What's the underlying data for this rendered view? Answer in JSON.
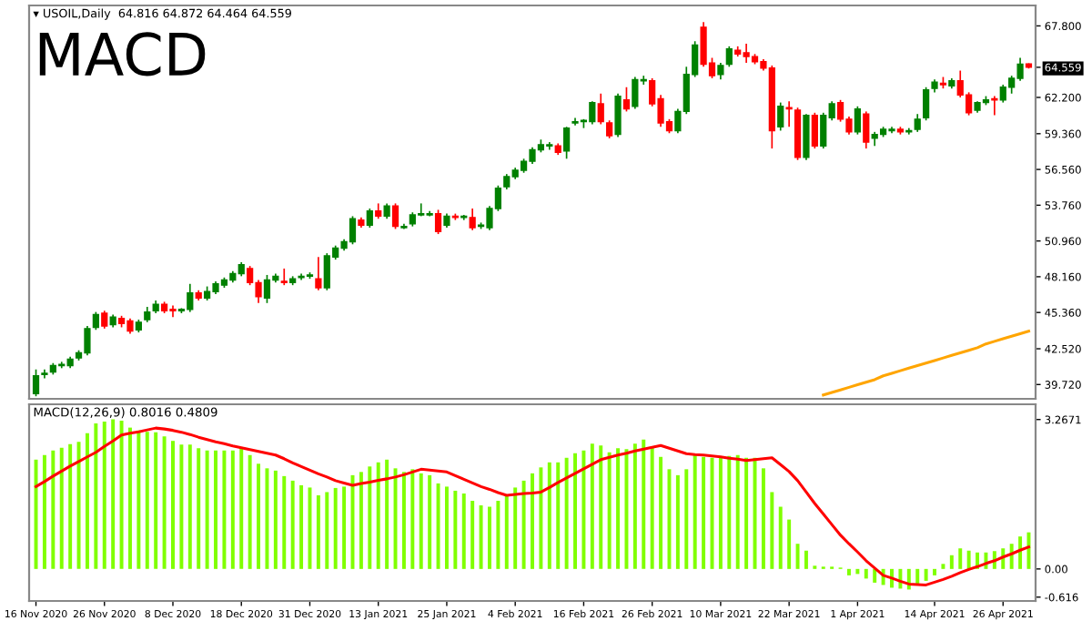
{
  "chart_data": [
    {
      "type": "candlestick",
      "title": "MACD",
      "subtitle": "▾ USOIL,Daily  64.816 64.872 64.464 64.559",
      "tick_labels": "y",
      "ohlc": [
        [
          39.0,
          40.9,
          38.8,
          40.4
        ],
        [
          40.5,
          40.9,
          40.2,
          40.6
        ],
        [
          40.7,
          41.4,
          40.5,
          41.2
        ],
        [
          41.2,
          41.5,
          41.0,
          41.3
        ],
        [
          41.2,
          41.9,
          41.0,
          41.7
        ],
        [
          41.8,
          42.4,
          41.6,
          42.2
        ],
        [
          42.2,
          44.3,
          42.0,
          44.1
        ],
        [
          44.2,
          45.4,
          44.0,
          45.2
        ],
        [
          45.3,
          45.5,
          44.1,
          44.3
        ],
        [
          44.4,
          45.2,
          44.2,
          45.0
        ],
        [
          44.9,
          45.1,
          44.2,
          44.5
        ],
        [
          44.7,
          44.9,
          43.7,
          43.9
        ],
        [
          44.0,
          44.8,
          43.8,
          44.6
        ],
        [
          44.8,
          45.8,
          44.6,
          45.4
        ],
        [
          45.5,
          46.3,
          45.3,
          46.0
        ],
        [
          46.0,
          46.2,
          45.3,
          45.5
        ],
        [
          45.6,
          45.9,
          45.0,
          45.5
        ],
        [
          45.5,
          45.7,
          45.3,
          45.6
        ],
        [
          45.6,
          47.6,
          45.4,
          46.9
        ],
        [
          46.9,
          47.1,
          46.3,
          46.5
        ],
        [
          46.5,
          47.4,
          46.3,
          47.0
        ],
        [
          47.0,
          47.8,
          46.8,
          47.6
        ],
        [
          47.5,
          48.1,
          47.3,
          47.9
        ],
        [
          47.9,
          48.6,
          47.7,
          48.4
        ],
        [
          48.4,
          49.3,
          48.2,
          49.1
        ],
        [
          48.8,
          49.0,
          47.5,
          47.7
        ],
        [
          47.7,
          47.9,
          46.1,
          46.6
        ],
        [
          46.5,
          48.3,
          46.1,
          47.9
        ],
        [
          47.9,
          48.4,
          47.7,
          48.2
        ],
        [
          47.8,
          48.8,
          47.5,
          47.7
        ],
        [
          47.7,
          48.2,
          47.5,
          48.0
        ],
        [
          48.1,
          48.4,
          47.9,
          48.2
        ],
        [
          48.2,
          48.5,
          48.0,
          48.3
        ],
        [
          48.0,
          49.7,
          47.1,
          47.3
        ],
        [
          47.3,
          50.0,
          47.1,
          49.8
        ],
        [
          49.7,
          50.6,
          49.5,
          50.4
        ],
        [
          50.4,
          51.1,
          50.2,
          50.9
        ],
        [
          50.9,
          52.9,
          50.7,
          52.7
        ],
        [
          52.6,
          52.8,
          52.0,
          52.2
        ],
        [
          52.2,
          53.5,
          52.0,
          53.3
        ],
        [
          53.3,
          53.9,
          52.7,
          52.9
        ],
        [
          52.9,
          53.9,
          52.7,
          53.7
        ],
        [
          53.7,
          53.9,
          51.9,
          52.1
        ],
        [
          52.0,
          52.3,
          51.9,
          52.1
        ],
        [
          52.3,
          53.2,
          52.1,
          53.0
        ],
        [
          53.0,
          53.9,
          52.9,
          53.1
        ],
        [
          53.0,
          53.3,
          52.9,
          53.1
        ],
        [
          53.1,
          53.4,
          51.5,
          51.7
        ],
        [
          52.2,
          53.1,
          52.0,
          52.9
        ],
        [
          52.9,
          53.1,
          52.6,
          52.8
        ],
        [
          52.8,
          53.0,
          52.6,
          52.9
        ],
        [
          52.8,
          53.5,
          51.8,
          52.0
        ],
        [
          52.1,
          52.4,
          51.9,
          52.2
        ],
        [
          52.0,
          53.7,
          51.8,
          53.5
        ],
        [
          53.5,
          55.3,
          53.3,
          55.1
        ],
        [
          55.2,
          56.2,
          55.0,
          56.0
        ],
        [
          56.0,
          56.7,
          55.8,
          56.5
        ],
        [
          56.5,
          57.4,
          56.3,
          57.2
        ],
        [
          57.2,
          58.3,
          57.0,
          58.1
        ],
        [
          58.1,
          58.9,
          57.9,
          58.5
        ],
        [
          58.4,
          58.7,
          58.1,
          58.5
        ],
        [
          58.4,
          58.6,
          57.7,
          57.9
        ],
        [
          58.0,
          59.9,
          57.4,
          59.8
        ],
        [
          60.2,
          60.6,
          60.0,
          60.3
        ],
        [
          60.3,
          60.5,
          59.8,
          60.4
        ],
        [
          60.3,
          61.9,
          60.1,
          61.8
        ],
        [
          61.7,
          62.5,
          60.1,
          60.3
        ],
        [
          60.2,
          60.4,
          59.0,
          59.2
        ],
        [
          59.3,
          62.5,
          59.1,
          62.3
        ],
        [
          62.0,
          63.0,
          61.1,
          61.3
        ],
        [
          61.5,
          63.8,
          61.3,
          63.6
        ],
        [
          63.5,
          63.9,
          63.2,
          63.6
        ],
        [
          63.5,
          63.7,
          61.5,
          61.7
        ],
        [
          62.1,
          62.4,
          59.9,
          60.2
        ],
        [
          60.3,
          60.5,
          59.4,
          59.6
        ],
        [
          59.6,
          61.3,
          59.4,
          61.1
        ],
        [
          61.1,
          64.6,
          60.9,
          64.0
        ],
        [
          64.0,
          66.6,
          63.8,
          66.3
        ],
        [
          67.7,
          68.1,
          64.6,
          64.8
        ],
        [
          64.9,
          65.3,
          63.7,
          63.9
        ],
        [
          64.0,
          64.9,
          63.6,
          64.7
        ],
        [
          64.8,
          66.2,
          64.6,
          66.0
        ],
        [
          65.9,
          66.2,
          65.4,
          65.6
        ],
        [
          65.7,
          66.4,
          64.9,
          65.4
        ],
        [
          65.4,
          65.6,
          64.8,
          65.0
        ],
        [
          65.0,
          65.2,
          64.3,
          64.5
        ],
        [
          64.5,
          64.7,
          58.2,
          59.6
        ],
        [
          59.9,
          61.8,
          59.6,
          61.5
        ],
        [
          61.4,
          61.9,
          59.9,
          61.3
        ],
        [
          61.2,
          61.4,
          57.3,
          57.5
        ],
        [
          57.5,
          60.9,
          57.3,
          60.8
        ],
        [
          60.8,
          61.0,
          58.2,
          58.4
        ],
        [
          58.4,
          61.0,
          58.2,
          60.8
        ],
        [
          60.6,
          61.9,
          60.4,
          61.7
        ],
        [
          61.8,
          62.0,
          60.3,
          60.5
        ],
        [
          60.5,
          60.7,
          59.3,
          59.5
        ],
        [
          59.5,
          61.5,
          59.3,
          61.3
        ],
        [
          60.9,
          61.1,
          58.2,
          58.7
        ],
        [
          59.0,
          59.5,
          58.4,
          59.3
        ],
        [
          59.3,
          59.9,
          59.1,
          59.7
        ],
        [
          59.6,
          59.9,
          59.4,
          59.7
        ],
        [
          59.7,
          59.9,
          59.3,
          59.5
        ],
        [
          59.5,
          59.8,
          59.3,
          59.6
        ],
        [
          59.7,
          60.9,
          59.5,
          60.5
        ],
        [
          60.6,
          63.0,
          60.4,
          62.8
        ],
        [
          62.9,
          63.6,
          62.6,
          63.4
        ],
        [
          63.3,
          63.8,
          62.9,
          63.2
        ],
        [
          63.1,
          63.7,
          62.9,
          63.5
        ],
        [
          63.5,
          64.3,
          62.2,
          62.4
        ],
        [
          62.4,
          62.6,
          60.8,
          61.0
        ],
        [
          61.2,
          61.9,
          61.0,
          61.8
        ],
        [
          61.8,
          62.3,
          61.6,
          62.0
        ],
        [
          62.1,
          62.3,
          60.8,
          62.0
        ],
        [
          62.0,
          63.2,
          61.8,
          63.0
        ],
        [
          63.0,
          63.9,
          62.5,
          63.7
        ],
        [
          63.7,
          65.3,
          63.5,
          64.8
        ],
        [
          64.816,
          64.872,
          64.464,
          64.559
        ]
      ],
      "colors": [
        "#008000",
        "#008000",
        "#008000",
        "#008000",
        "#008000",
        "#008000",
        "#008000",
        "#008000",
        "#ff0000",
        "#008000",
        "#ff0000",
        "#ff0000",
        "#008000",
        "#008000",
        "#008000",
        "#ff0000",
        "#ff0000",
        "#008000",
        "#008000",
        "#ff0000",
        "#008000",
        "#008000",
        "#008000",
        "#008000",
        "#008000",
        "#ff0000",
        "#ff0000",
        "#008000",
        "#008000",
        "#ff0000",
        "#008000",
        "#008000",
        "#008000",
        "#ff0000",
        "#008000",
        "#008000",
        "#008000",
        "#008000",
        "#ff0000",
        "#008000",
        "#ff0000",
        "#008000",
        "#ff0000",
        "#008000",
        "#008000",
        "#008000",
        "#008000",
        "#ff0000",
        "#008000",
        "#ff0000",
        "#008000",
        "#ff0000",
        "#008000",
        "#008000",
        "#008000",
        "#008000",
        "#008000",
        "#008000",
        "#008000",
        "#008000",
        "#008000",
        "#ff0000",
        "#008000",
        "#008000",
        "#008000",
        "#008000",
        "#ff0000",
        "#ff0000",
        "#008000",
        "#ff0000",
        "#008000",
        "#008000",
        "#ff0000",
        "#ff0000",
        "#ff0000",
        "#008000",
        "#008000",
        "#008000",
        "#ff0000",
        "#ff0000",
        "#008000",
        "#008000",
        "#ff0000",
        "#ff0000",
        "#ff0000",
        "#ff0000",
        "#ff0000",
        "#008000",
        "#ff0000",
        "#ff0000",
        "#008000",
        "#ff0000",
        "#008000",
        "#008000",
        "#ff0000",
        "#ff0000",
        "#008000",
        "#ff0000",
        "#008000",
        "#008000",
        "#008000",
        "#ff0000",
        "#008000",
        "#008000",
        "#008000",
        "#008000",
        "#ff0000",
        "#008000",
        "#ff0000",
        "#ff0000",
        "#008000",
        "#008000",
        "#ff0000",
        "#008000",
        "#008000",
        "#008000",
        "#ff0000"
      ],
      "series": [
        {
          "type": "line",
          "color": "#ffa500",
          "values": [
            null,
            null,
            null,
            null,
            null,
            null,
            null,
            null,
            null,
            null,
            null,
            null,
            null,
            null,
            null,
            null,
            null,
            null,
            null,
            null,
            null,
            null,
            null,
            null,
            null,
            null,
            null,
            null,
            null,
            null,
            null,
            null,
            null,
            null,
            null,
            null,
            null,
            null,
            null,
            null,
            null,
            null,
            null,
            null,
            null,
            null,
            null,
            null,
            null,
            null,
            null,
            null,
            null,
            null,
            null,
            null,
            null,
            null,
            null,
            null,
            null,
            null,
            null,
            null,
            null,
            null,
            null,
            null,
            null,
            null,
            null,
            null,
            null,
            null,
            null,
            null,
            null,
            null,
            null,
            null,
            null,
            null,
            null,
            null,
            null,
            null,
            null,
            null,
            null,
            null,
            null,
            null,
            38.9,
            39.1,
            39.3,
            39.5,
            39.7,
            39.9,
            40.1,
            40.4,
            40.6,
            40.8,
            41.0,
            41.2,
            41.4,
            41.6,
            41.8,
            42.0,
            42.2,
            42.4,
            42.6,
            42.9,
            43.1,
            43.3,
            43.5,
            43.7,
            43.9
          ]
        }
      ],
      "ylim": [
        38.6,
        69.4
      ],
      "yticks": [
        {
          "value": 67.8,
          "label": "67.800"
        },
        {
          "value": 64.559,
          "label": "64.559"
        },
        {
          "value": 62.2,
          "label": "62.200"
        },
        {
          "value": 59.36,
          "label": "59.360"
        },
        {
          "value": 56.56,
          "label": "56.560"
        },
        {
          "value": 53.76,
          "label": "53.760"
        },
        {
          "value": 50.96,
          "label": "50.960"
        },
        {
          "value": 48.16,
          "label": "48.160"
        },
        {
          "value": 45.36,
          "label": "45.360"
        },
        {
          "value": 42.52,
          "label": "42.520"
        },
        {
          "value": 39.72,
          "label": "39.720"
        }
      ]
    },
    {
      "type": "bar",
      "annotations": [
        "MACD(12,26,9) 0.8016 0.4809"
      ],
      "categories": [
        "16 Nov 2020",
        null,
        null,
        null,
        null,
        null,
        null,
        null,
        "26 Nov 2020",
        null,
        null,
        null,
        null,
        null,
        null,
        null,
        "8 Dec 2020",
        null,
        null,
        null,
        null,
        null,
        null,
        null,
        "18 Dec 2020",
        null,
        null,
        null,
        null,
        null,
        null,
        null,
        "31 Dec 2020",
        null,
        null,
        null,
        null,
        null,
        null,
        null,
        "13 Jan 2021",
        null,
        null,
        null,
        null,
        null,
        null,
        null,
        "25 Jan 2021",
        null,
        null,
        null,
        null,
        null,
        null,
        null,
        "4 Feb 2021",
        null,
        null,
        null,
        null,
        null,
        null,
        null,
        "16 Feb 2021",
        null,
        null,
        null,
        null,
        null,
        null,
        null,
        "26 Feb 2021",
        null,
        null,
        null,
        null,
        null,
        null,
        null,
        "10 Mar 2021",
        null,
        null,
        null,
        null,
        null,
        null,
        null,
        "22 Mar 2021",
        null,
        null,
        null,
        null,
        null,
        null,
        null,
        "1 Apr 2021",
        null,
        null,
        null,
        null,
        null,
        null,
        null,
        null,
        "14 Apr 2021",
        null,
        null,
        null,
        null,
        null,
        null,
        null,
        "26 Apr 2021",
        null,
        null,
        null
      ],
      "series": [
        {
          "type": "bar",
          "color": "#80ff00",
          "values": [
            2.39,
            2.49,
            2.59,
            2.65,
            2.73,
            2.78,
            2.97,
            3.18,
            3.22,
            3.27,
            3.24,
            3.09,
            3.03,
            3.0,
            2.99,
            2.9,
            2.8,
            2.72,
            2.72,
            2.64,
            2.59,
            2.59,
            2.59,
            2.59,
            2.65,
            2.49,
            2.3,
            2.2,
            2.15,
            2.03,
            1.93,
            1.83,
            1.78,
            1.61,
            1.68,
            1.77,
            1.8,
            2.05,
            2.12,
            2.24,
            2.33,
            2.39,
            2.2,
            2.12,
            2.18,
            2.09,
            2.05,
            1.87,
            1.8,
            1.71,
            1.65,
            1.49,
            1.39,
            1.36,
            1.49,
            1.61,
            1.78,
            1.93,
            2.09,
            2.22,
            2.33,
            2.33,
            2.43,
            2.53,
            2.59,
            2.74,
            2.7,
            2.55,
            2.64,
            2.62,
            2.74,
            2.83,
            2.68,
            2.45,
            2.18,
            2.05,
            2.18,
            2.49,
            2.45,
            2.43,
            2.45,
            2.47,
            2.49,
            2.43,
            2.43,
            2.2,
            1.68,
            1.36,
            1.08,
            0.55,
            0.4,
            0.07,
            0.05,
            0.05,
            0.03,
            -0.14,
            -0.11,
            -0.21,
            -0.3,
            -0.35,
            -0.41,
            -0.43,
            -0.45,
            -0.36,
            -0.26,
            -0.14,
            0.11,
            0.3,
            0.45,
            0.4,
            0.36,
            0.36,
            0.39,
            0.45,
            0.55,
            0.71,
            0.8
          ]
        },
        {
          "type": "line",
          "color": "#ff0000",
          "values": [
            1.8,
            1.91,
            2.03,
            2.14,
            2.25,
            2.35,
            2.45,
            2.55,
            2.68,
            2.8,
            2.93,
            2.97,
            3.0,
            3.04,
            3.08,
            3.06,
            3.03,
            2.99,
            2.94,
            2.88,
            2.83,
            2.78,
            2.74,
            2.69,
            2.65,
            2.61,
            2.57,
            2.53,
            2.49,
            2.41,
            2.32,
            2.24,
            2.16,
            2.08,
            2.01,
            1.93,
            1.88,
            1.83,
            1.87,
            1.9,
            1.94,
            1.97,
            2.01,
            2.06,
            2.12,
            2.18,
            2.16,
            2.14,
            2.12,
            2.04,
            1.96,
            1.88,
            1.8,
            1.74,
            1.67,
            1.61,
            1.63,
            1.65,
            1.66,
            1.68,
            1.78,
            1.89,
            1.99,
            2.09,
            2.19,
            2.29,
            2.39,
            2.44,
            2.49,
            2.53,
            2.58,
            2.62,
            2.66,
            2.7,
            2.64,
            2.58,
            2.52,
            2.5,
            2.49,
            2.47,
            2.45,
            2.42,
            2.4,
            2.37,
            2.39,
            2.41,
            2.43,
            2.28,
            2.13,
            1.93,
            1.68,
            1.43,
            1.2,
            0.97,
            0.74,
            0.55,
            0.37,
            0.18,
            0.02,
            -0.14,
            -0.2,
            -0.27,
            -0.33,
            -0.34,
            -0.35,
            -0.29,
            -0.23,
            -0.16,
            -0.08,
            -0.01,
            0.05,
            0.12,
            0.18,
            0.26,
            0.33,
            0.41,
            0.48
          ]
        }
      ],
      "ylim": [
        -0.7,
        3.6
      ],
      "yticks": [
        {
          "value": 3.2671,
          "label": "3.2671"
        },
        {
          "value": 0,
          "label": "0.00"
        },
        {
          "value": -0.616,
          "label": "-0.616"
        }
      ]
    }
  ]
}
